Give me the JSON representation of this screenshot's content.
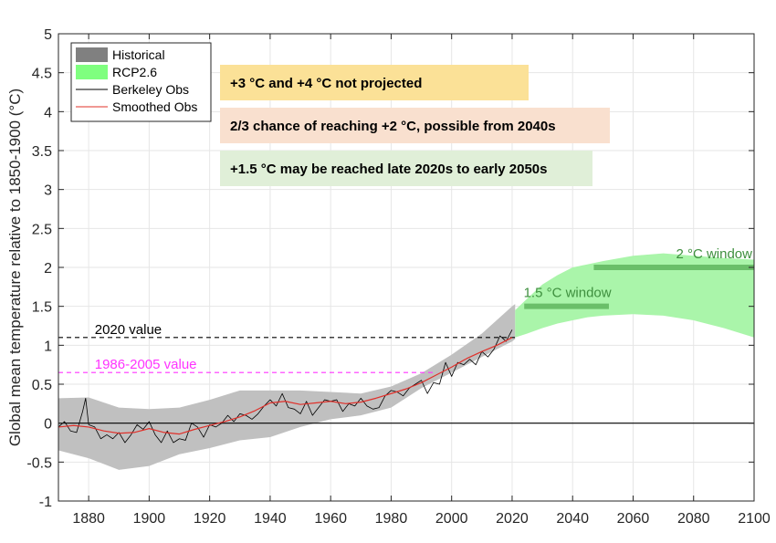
{
  "chart_data": {
    "type": "line",
    "xlabel": "",
    "ylabel": "Global mean temperature relative to 1850-1900 (°C)",
    "xlim": [
      1870,
      2100
    ],
    "ylim": [
      -1,
      5
    ],
    "xticks": [
      1880,
      1900,
      1920,
      1940,
      1960,
      1980,
      2000,
      2020,
      2040,
      2060,
      2080,
      2100
    ],
    "yticks": [
      -1,
      -0.5,
      0,
      0.5,
      1,
      1.5,
      2,
      2.5,
      3,
      3.5,
      4,
      4.5,
      5
    ],
    "ytick_labels": [
      "-1",
      "-0.5",
      "0",
      "0.5",
      "1",
      "1.5",
      "2",
      "2.5",
      "3",
      "3.5",
      "4",
      "4.5",
      "5"
    ],
    "grid": true,
    "legend": {
      "placement": "top-left",
      "entries": [
        {
          "label": "Historical",
          "kind": "patch",
          "color": "#808080"
        },
        {
          "label": "RCP2.6",
          "kind": "patch",
          "color": "#7fff7f"
        },
        {
          "label": "Berkeley Obs",
          "kind": "line",
          "color": "#000000"
        },
        {
          "label": "Smoothed Obs",
          "kind": "line",
          "color": "#e0302a"
        }
      ]
    },
    "colors": {
      "historical_band": "#c0c0c0",
      "rcp_band": "#aaf5aa",
      "obs": "#000000",
      "smoothed": "#e0302a",
      "window": "#6abf69",
      "window_text": "#3e8f3e",
      "baseline_1986": "#ff33ff",
      "baseline_2020": "#000000"
    },
    "historical_band": {
      "x": [
        1870,
        1880,
        1890,
        1900,
        1910,
        1920,
        1930,
        1940,
        1950,
        1960,
        1970,
        1980,
        1990,
        2000,
        2010,
        2020,
        2021
      ],
      "upper": [
        0.32,
        0.33,
        0.2,
        0.18,
        0.2,
        0.3,
        0.42,
        0.42,
        0.42,
        0.4,
        0.38,
        0.47,
        0.64,
        0.88,
        1.15,
        1.5,
        1.53
      ],
      "lower": [
        -0.35,
        -0.45,
        -0.6,
        -0.55,
        -0.4,
        -0.32,
        -0.22,
        -0.18,
        -0.05,
        0.05,
        0.1,
        0.2,
        0.45,
        0.65,
        0.85,
        1.05,
        1.08
      ]
    },
    "rcp26_band": {
      "x": [
        2021,
        2025,
        2030,
        2035,
        2040,
        2045,
        2050,
        2060,
        2070,
        2080,
        2090,
        2100
      ],
      "upper": [
        1.45,
        1.6,
        1.78,
        1.9,
        2.0,
        2.04,
        2.08,
        2.15,
        2.18,
        2.15,
        2.12,
        2.1
      ],
      "lower": [
        1.1,
        1.15,
        1.22,
        1.28,
        1.32,
        1.36,
        1.38,
        1.4,
        1.38,
        1.32,
        1.22,
        1.1
      ]
    },
    "smoothed_obs": {
      "x": [
        1870,
        1875,
        1880,
        1885,
        1890,
        1895,
        1900,
        1905,
        1910,
        1915,
        1920,
        1925,
        1930,
        1935,
        1940,
        1945,
        1950,
        1955,
        1960,
        1965,
        1970,
        1975,
        1980,
        1985,
        1990,
        1995,
        2000,
        2005,
        2010,
        2015,
        2020
      ],
      "y": [
        -0.05,
        -0.03,
        -0.05,
        -0.1,
        -0.13,
        -0.12,
        -0.07,
        -0.12,
        -0.14,
        -0.08,
        -0.03,
        0.02,
        0.08,
        0.16,
        0.26,
        0.28,
        0.24,
        0.26,
        0.28,
        0.25,
        0.27,
        0.32,
        0.38,
        0.44,
        0.52,
        0.62,
        0.72,
        0.83,
        0.92,
        1.0,
        1.1
      ]
    },
    "berkeley_obs": {
      "x": [
        1870,
        1872,
        1874,
        1876,
        1878,
        1879,
        1880,
        1882,
        1884,
        1886,
        1888,
        1890,
        1892,
        1894,
        1896,
        1898,
        1900,
        1902,
        1904,
        1906,
        1908,
        1910,
        1912,
        1914,
        1916,
        1918,
        1920,
        1922,
        1924,
        1926,
        1928,
        1930,
        1932,
        1934,
        1936,
        1938,
        1940,
        1942,
        1944,
        1946,
        1948,
        1950,
        1952,
        1954,
        1956,
        1958,
        1960,
        1962,
        1964,
        1966,
        1968,
        1970,
        1972,
        1974,
        1976,
        1978,
        1980,
        1982,
        1984,
        1986,
        1988,
        1990,
        1992,
        1994,
        1996,
        1998,
        2000,
        2002,
        2004,
        2006,
        2008,
        2010,
        2012,
        2014,
        2016,
        2018,
        2020
      ],
      "y": [
        -0.05,
        0.02,
        -0.1,
        -0.12,
        0.15,
        0.32,
        -0.02,
        -0.05,
        -0.2,
        -0.15,
        -0.2,
        -0.12,
        -0.25,
        -0.15,
        -0.02,
        -0.08,
        0.02,
        -0.15,
        -0.25,
        -0.1,
        -0.25,
        -0.2,
        -0.22,
        0.0,
        -0.05,
        -0.18,
        -0.02,
        -0.05,
        0.0,
        0.1,
        0.02,
        0.12,
        0.1,
        0.05,
        0.12,
        0.22,
        0.3,
        0.22,
        0.38,
        0.2,
        0.18,
        0.12,
        0.28,
        0.1,
        0.2,
        0.3,
        0.28,
        0.3,
        0.15,
        0.25,
        0.22,
        0.32,
        0.22,
        0.18,
        0.2,
        0.35,
        0.42,
        0.4,
        0.35,
        0.45,
        0.5,
        0.55,
        0.38,
        0.52,
        0.5,
        0.78,
        0.6,
        0.78,
        0.75,
        0.82,
        0.75,
        0.92,
        0.85,
        0.95,
        1.12,
        1.05,
        1.2
      ]
    },
    "reference_lines": [
      {
        "label": "2020 value",
        "y": 1.1,
        "x_start": 1870,
        "x_end": 2021,
        "style": "dashed",
        "color": "#000000"
      },
      {
        "label": "1986-2005 value",
        "y": 0.65,
        "x_start": 1870,
        "x_end": 1995,
        "style": "dashed",
        "color": "#ff33ff"
      },
      {
        "label": "",
        "y": 0,
        "x_start": 1870,
        "x_end": 2100,
        "style": "solid",
        "color": "#000000"
      }
    ],
    "windows": [
      {
        "label": "1.5 °C window",
        "y": 1.5,
        "x_start": 2024,
        "x_end": 2052
      },
      {
        "label": "2 °C window",
        "y": 2.0,
        "x_start": 2047,
        "x_end": 2100
      }
    ],
    "annotations": [
      {
        "text": "+3 °C and +4 °C not projected",
        "color": "#fbe197"
      },
      {
        "text": "2/3 chance of reaching +2 °C, possible from 2040s",
        "color": "#f9e0cf"
      },
      {
        "text": "+1.5 °C may be reached late 2020s to early 2050s",
        "color": "#e0efd8"
      }
    ]
  }
}
